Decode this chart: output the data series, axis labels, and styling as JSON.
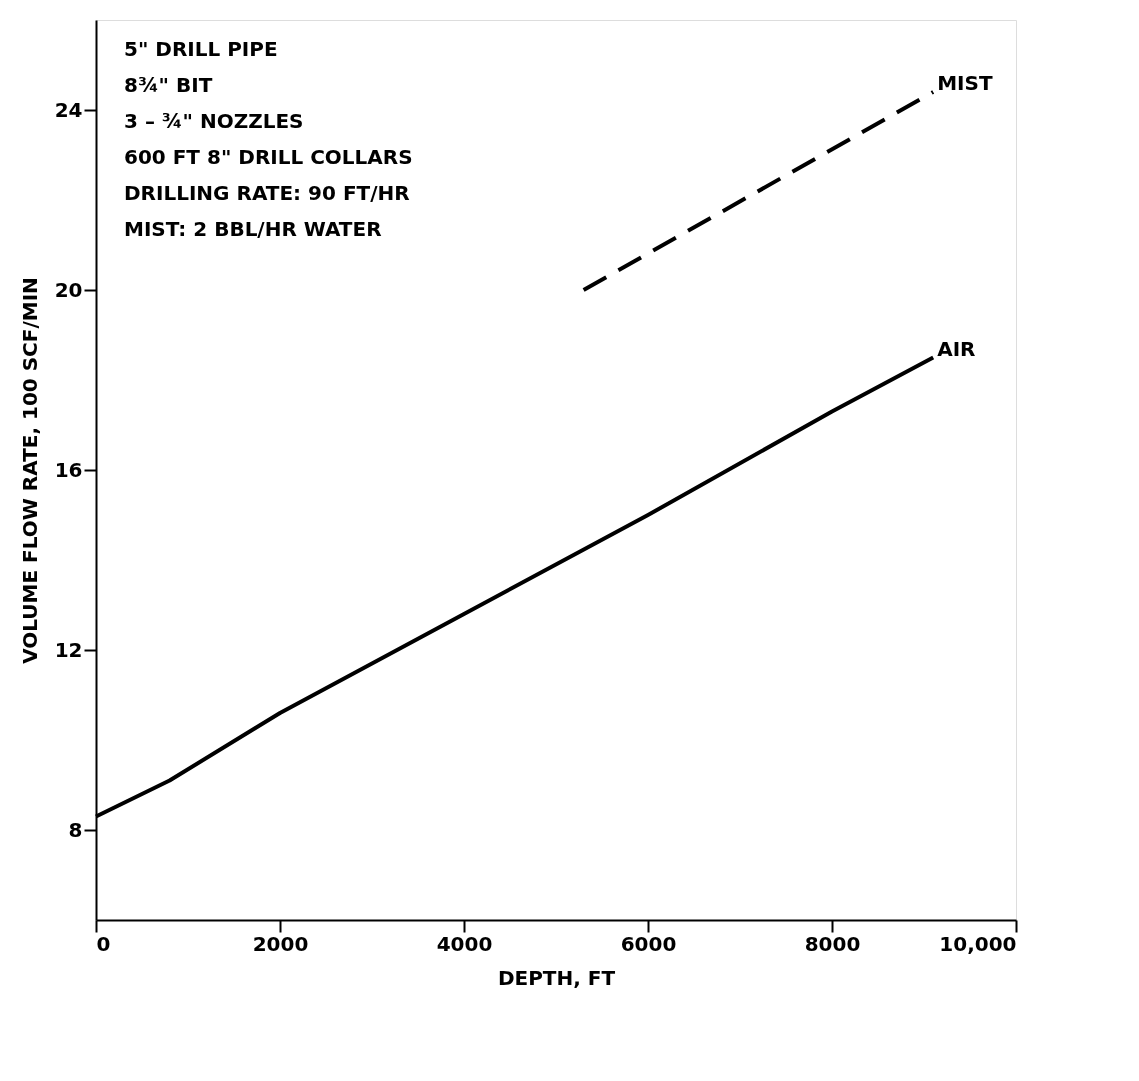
{
  "chart_data": {
    "type": "line",
    "xlabel": "DEPTH, FT",
    "ylabel": "VOLUME FLOW RATE, 100 SCF/MIN",
    "xlim": [
      0,
      10000
    ],
    "ylim": [
      6,
      26
    ],
    "xticks": [
      0,
      2000,
      4000,
      6000,
      8000,
      {
        "value": 10000,
        "label": "10,000"
      }
    ],
    "yticks": [
      8,
      12,
      16,
      20,
      24
    ],
    "grid": false,
    "legend": false,
    "marker": "none",
    "series": [
      {
        "name": "AIR",
        "color": "#000000",
        "line_style": "solid",
        "x": [
          0,
          800,
          2000,
          4000,
          6000,
          8000,
          9100
        ],
        "values": [
          8.3,
          9.1,
          10.6,
          12.8,
          15.0,
          17.3,
          18.5
        ]
      },
      {
        "name": "MIST",
        "color": "#000000",
        "line_style": "dashed",
        "x": [
          5300,
          9100
        ],
        "values": [
          20.0,
          24.4
        ]
      }
    ],
    "annotations": [
      "5\" DRILL PIPE",
      "8¾\" BIT",
      "3 – ¾\" NOZZLES",
      "600 FT   8\" DRILL COLLARS",
      "DRILLING RATE: 90 FT/HR",
      "MIST: 2 BBL/HR WATER"
    ]
  }
}
